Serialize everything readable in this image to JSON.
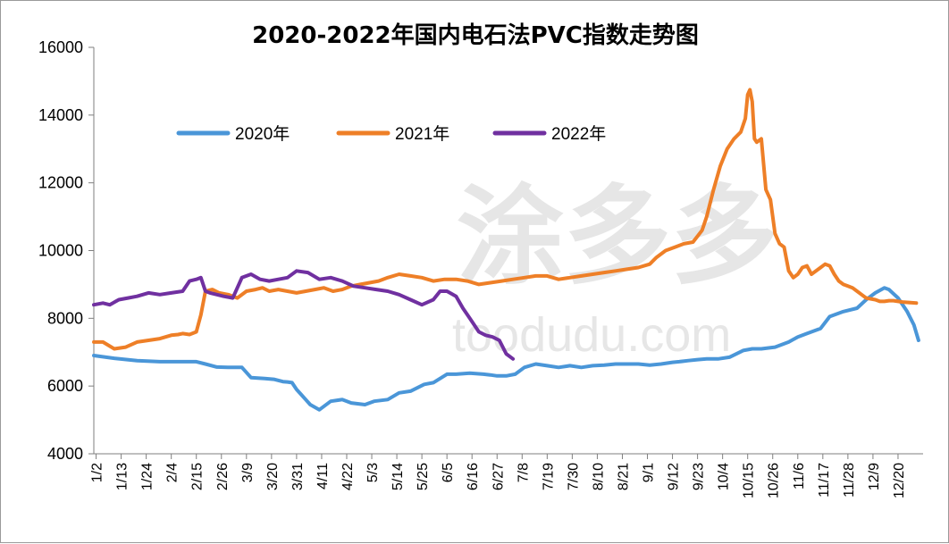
{
  "chart_data": {
    "type": "line",
    "title": "2020-2022年国内电石法PVC指数走势图",
    "xlabel": "",
    "ylabel": "",
    "ylim": [
      4000,
      16000
    ],
    "yticks": [
      4000,
      6000,
      8000,
      10000,
      12000,
      14000,
      16000
    ],
    "xlim": [
      1,
      365
    ],
    "categories": [
      "1/2",
      "1/13",
      "1/24",
      "2/4",
      "2/15",
      "2/26",
      "3/9",
      "3/20",
      "3/31",
      "4/11",
      "4/22",
      "5/3",
      "5/14",
      "5/25",
      "6/5",
      "6/16",
      "6/27",
      "7/8",
      "7/19",
      "7/30",
      "8/10",
      "8/21",
      "9/1",
      "9/12",
      "9/23",
      "10/4",
      "10/15",
      "10/26",
      "11/6",
      "11/17",
      "11/28",
      "12/9",
      "12/20"
    ],
    "category_day": [
      2,
      13,
      24,
      35,
      46,
      57,
      68,
      79,
      90,
      101,
      112,
      123,
      134,
      145,
      156,
      167,
      178,
      189,
      200,
      211,
      222,
      233,
      244,
      255,
      266,
      277,
      288,
      299,
      310,
      321,
      332,
      343,
      354
    ],
    "grid": false,
    "legend_position": "top-left",
    "series": [
      {
        "name": "2020年",
        "color": "#4a96d8",
        "x": [
          1,
          10,
          20,
          30,
          32,
          40,
          46,
          50,
          55,
          60,
          66,
          70,
          76,
          80,
          84,
          86,
          88,
          90,
          92,
          94,
          96,
          100,
          105,
          110,
          114,
          120,
          124,
          130,
          135,
          140,
          146,
          150,
          156,
          160,
          166,
          172,
          175,
          178,
          182,
          186,
          190,
          195,
          200,
          205,
          210,
          215,
          220,
          225,
          230,
          235,
          240,
          245,
          250,
          255,
          258,
          262,
          266,
          270,
          275,
          280,
          286,
          290,
          294,
          300,
          306,
          310,
          314,
          320,
          324,
          330,
          336,
          340,
          344,
          348,
          350,
          354,
          358,
          361,
          363
        ],
        "y": [
          6900,
          6820,
          6750,
          6720,
          6720,
          6720,
          6720,
          6650,
          6560,
          6550,
          6550,
          6250,
          6220,
          6200,
          6130,
          6120,
          6100,
          5900,
          5750,
          5600,
          5450,
          5300,
          5550,
          5600,
          5500,
          5450,
          5550,
          5600,
          5800,
          5850,
          6050,
          6100,
          6350,
          6350,
          6380,
          6350,
          6330,
          6300,
          6300,
          6350,
          6550,
          6650,
          6600,
          6550,
          6600,
          6550,
          6600,
          6620,
          6650,
          6650,
          6650,
          6620,
          6650,
          6700,
          6720,
          6750,
          6780,
          6800,
          6800,
          6850,
          7050,
          7100,
          7100,
          7150,
          7300,
          7450,
          7550,
          7700,
          8050,
          8200,
          8300,
          8550,
          8750,
          8900,
          8850,
          8600,
          8200,
          7800,
          7350
        ]
      },
      {
        "name": "2021年",
        "color": "#ee7f27",
        "x": [
          1,
          5,
          10,
          15,
          20,
          25,
          30,
          35,
          38,
          40,
          43,
          46,
          48,
          50,
          53,
          56,
          60,
          64,
          68,
          72,
          75,
          78,
          82,
          86,
          90,
          94,
          98,
          102,
          106,
          110,
          114,
          118,
          122,
          126,
          130,
          135,
          140,
          145,
          150,
          155,
          160,
          165,
          170,
          175,
          180,
          185,
          190,
          195,
          200,
          205,
          210,
          215,
          220,
          225,
          230,
          235,
          240,
          245,
          248,
          252,
          256,
          260,
          264,
          268,
          270,
          273,
          276,
          279,
          282,
          285,
          287,
          288,
          289,
          290,
          291,
          292,
          294,
          296,
          298,
          300,
          302,
          304,
          306,
          308,
          310,
          312,
          314,
          316,
          318,
          320,
          322,
          324,
          326,
          328,
          330,
          332,
          334,
          336,
          338,
          340,
          344,
          346,
          348,
          350,
          352,
          354,
          356,
          358,
          360,
          362
        ],
        "y": [
          7300,
          7300,
          7100,
          7150,
          7300,
          7350,
          7400,
          7500,
          7520,
          7550,
          7520,
          7600,
          8100,
          8800,
          8850,
          8750,
          8700,
          8600,
          8800,
          8850,
          8900,
          8800,
          8850,
          8800,
          8750,
          8800,
          8850,
          8900,
          8800,
          8850,
          8950,
          9000,
          9050,
          9100,
          9200,
          9300,
          9250,
          9200,
          9100,
          9150,
          9150,
          9100,
          9000,
          9050,
          9100,
          9150,
          9200,
          9250,
          9250,
          9150,
          9200,
          9250,
          9300,
          9350,
          9400,
          9450,
          9500,
          9600,
          9800,
          10000,
          10100,
          10200,
          10250,
          10600,
          11000,
          11800,
          12500,
          13000,
          13300,
          13500,
          13900,
          14600,
          14750,
          14400,
          13300,
          13200,
          13300,
          11800,
          11500,
          10500,
          10200,
          10100,
          9400,
          9200,
          9300,
          9500,
          9550,
          9300,
          9400,
          9500,
          9600,
          9550,
          9300,
          9100,
          9000,
          8950,
          8900,
          8800,
          8700,
          8600,
          8550,
          8500,
          8500,
          8520,
          8520,
          8500,
          8480,
          8470,
          8460,
          8450
        ]
      },
      {
        "name": "2022年",
        "color": "#7030a0",
        "x": [
          1,
          5,
          8,
          12,
          16,
          20,
          25,
          30,
          35,
          40,
          43,
          46,
          48,
          50,
          52,
          55,
          58,
          62,
          64,
          66,
          70,
          74,
          78,
          82,
          86,
          90,
          95,
          100,
          105,
          110,
          115,
          120,
          125,
          130,
          135,
          140,
          145,
          150,
          153,
          156,
          160,
          163,
          166,
          170,
          173,
          176,
          179,
          182,
          185
        ],
        "y": [
          8400,
          8450,
          8400,
          8550,
          8600,
          8650,
          8750,
          8700,
          8750,
          8800,
          9100,
          9150,
          9200,
          8800,
          8750,
          8700,
          8650,
          8600,
          8900,
          9200,
          9300,
          9150,
          9100,
          9150,
          9200,
          9400,
          9350,
          9150,
          9200,
          9100,
          8950,
          8900,
          8850,
          8800,
          8700,
          8550,
          8400,
          8550,
          8800,
          8800,
          8650,
          8300,
          8000,
          7600,
          7500,
          7450,
          7350,
          6950,
          6800
        ]
      }
    ],
    "watermark": {
      "cn": "涂多多",
      "en": "toodudu.com"
    }
  }
}
